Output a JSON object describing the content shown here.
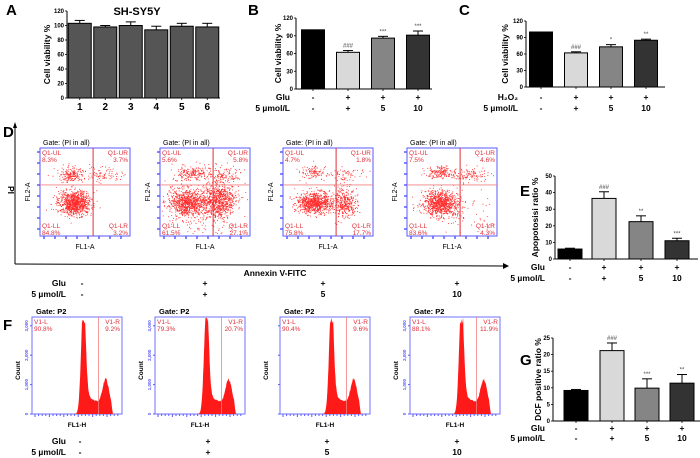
{
  "figure": {
    "panel_letters": [
      "A",
      "B",
      "C",
      "D",
      "E",
      "F",
      "G"
    ]
  },
  "chart_data": [
    {
      "panel": "A",
      "type": "bar",
      "title": "SH-SY5Y",
      "ylabel": "Cell viability %",
      "xlabel": "",
      "ylim": [
        0,
        120
      ],
      "yticks": [
        0,
        20,
        40,
        60,
        80,
        100,
        120
      ],
      "categories": [
        "1",
        "2",
        "3",
        "4",
        "5",
        "6"
      ],
      "values": [
        103,
        98,
        100,
        94,
        99,
        98
      ],
      "errors": [
        4,
        2,
        5,
        5,
        4,
        5
      ],
      "colors": [
        "#555555",
        "#555555",
        "#555555",
        "#555555",
        "#555555",
        "#555555"
      ],
      "annotations": [
        "",
        "",
        "",
        "",
        "",
        ""
      ]
    },
    {
      "panel": "B",
      "type": "bar",
      "ylabel": "Cell viability %",
      "ylim": [
        0,
        120
      ],
      "yticks": [
        0,
        30,
        60,
        90,
        120
      ],
      "categories": [
        "",
        "",
        "",
        ""
      ],
      "condition_rows": [
        {
          "label": "Glu",
          "values": [
            "-",
            "+",
            "+",
            "+"
          ]
        },
        {
          "label": "5 µmol/L",
          "values": [
            "-",
            "+",
            "5",
            "10"
          ]
        }
      ],
      "values": [
        100,
        62,
        86,
        91
      ],
      "errors": [
        0,
        3,
        3,
        7
      ],
      "colors": [
        "#000000",
        "#d9d9d9",
        "#858585",
        "#333333"
      ],
      "annotations": [
        "",
        "###",
        "***",
        "***"
      ]
    },
    {
      "panel": "C",
      "type": "bar",
      "ylabel": "Cell viability %",
      "ylim": [
        0,
        120
      ],
      "yticks": [
        0,
        30,
        60,
        90,
        120
      ],
      "categories": [
        "",
        "",
        "",
        ""
      ],
      "condition_rows": [
        {
          "label": "H₂O₂",
          "values": [
            "-",
            "+",
            "+",
            "+"
          ]
        },
        {
          "label": "5 µmol/L",
          "values": [
            "-",
            "+",
            "5",
            "10"
          ]
        }
      ],
      "values": [
        100,
        62,
        73,
        85
      ],
      "errors": [
        0,
        2,
        4,
        2
      ],
      "colors": [
        "#000000",
        "#d9d9d9",
        "#858585",
        "#333333"
      ],
      "annotations": [
        "",
        "###",
        "*",
        "**"
      ]
    },
    {
      "panel": "D",
      "type": "scatter",
      "title": "Annexin V-FITC / PI flow cytometry",
      "xlabel": "Annexin V-FITC",
      "ylabel": "PI",
      "plot_xlabel": "FL1-A",
      "plot_ylabel": "FL2-A",
      "gate_label": "Gate: (PI in all)",
      "condition_rows": [
        {
          "label": "Glu",
          "values": [
            "-",
            "+",
            "+",
            "+"
          ]
        },
        {
          "label": "5 µmol/L",
          "values": [
            "-",
            "+",
            "5",
            "10"
          ]
        }
      ],
      "plots": [
        {
          "UL": "8.3%",
          "UR": "3.7%",
          "LL": "84.8%",
          "LR": "3.2%"
        },
        {
          "UL": "5.6%",
          "UR": "5.8%",
          "LL": "61.5%",
          "LR": "27.1%"
        },
        {
          "UL": "4.7%",
          "UR": "1.8%",
          "LL": "75.8%",
          "LR": "17.7%"
        },
        {
          "UL": "7.5%",
          "UR": "4.6%",
          "LL": "83.6%",
          "LR": "4.3%"
        }
      ],
      "quadrant_names": {
        "UL": "Q1-UL",
        "UR": "Q1-UR",
        "LL": "Q1-LL",
        "LR": "Q1-LR"
      }
    },
    {
      "panel": "E",
      "type": "bar",
      "ylabel": "Apopotosisi ratio %",
      "ylim": [
        0,
        50
      ],
      "yticks": [
        0,
        10,
        20,
        30,
        40,
        50
      ],
      "categories": [
        "",
        "",
        "",
        ""
      ],
      "condition_rows": [
        {
          "label": "Glu",
          "values": [
            "-",
            "+",
            "+",
            "+"
          ]
        },
        {
          "label": "5 µmol/L",
          "values": [
            "-",
            "+",
            "5",
            "10"
          ]
        }
      ],
      "values": [
        6,
        36.5,
        22.5,
        11
      ],
      "errors": [
        0.5,
        4,
        3.5,
        1.5
      ],
      "colors": [
        "#000000",
        "#d9d9d9",
        "#858585",
        "#333333"
      ],
      "annotations": [
        "",
        "###",
        "**",
        "***"
      ]
    },
    {
      "panel": "F",
      "type": "area",
      "title": "DCF flow cytometry histograms",
      "gate_label": "Gate: P2",
      "plot_xlabel": "FL1-H",
      "plot_ylabel": "Count",
      "yticks": [
        "0",
        "1,000",
        "2,000",
        "3,000"
      ],
      "condition_rows": [
        {
          "label": "Glu",
          "values": [
            "-",
            "+",
            "+",
            "+"
          ]
        },
        {
          "label": "5 µmol/L",
          "values": [
            "-",
            "+",
            "5",
            "10"
          ]
        }
      ],
      "plots": [
        {
          "L": "90.8%",
          "R": "9.2%"
        },
        {
          "L": "79.3%",
          "R": "20.7%"
        },
        {
          "L": "90.4%",
          "R": "9.6%"
        },
        {
          "L": "88.1%",
          "R": "11.9%"
        }
      ],
      "region_names": {
        "L": "V1-L",
        "R": "V1-R"
      }
    },
    {
      "panel": "G",
      "type": "bar",
      "ylabel": "DCF positive ratio %",
      "ylim": [
        0,
        25
      ],
      "yticks": [
        0,
        5,
        10,
        15,
        20,
        25
      ],
      "categories": [
        "",
        "",
        "",
        ""
      ],
      "condition_rows": [
        {
          "label": "Glu",
          "values": [
            "-",
            "+",
            "+",
            "+"
          ]
        },
        {
          "label": "5 µmol/L",
          "values": [
            "-",
            "+",
            "5",
            "10"
          ]
        }
      ],
      "values": [
        9.2,
        21.2,
        9.9,
        11.4
      ],
      "errors": [
        0.3,
        2.3,
        2.8,
        2.6
      ],
      "colors": [
        "#000000",
        "#d9d9d9",
        "#858585",
        "#333333"
      ],
      "annotations": [
        "",
        "###",
        "***",
        "**"
      ]
    }
  ],
  "colors": {
    "flow_axis": "#5a5aff",
    "flow_points": "#ff2a2a",
    "flow_text": "#e0303a"
  }
}
